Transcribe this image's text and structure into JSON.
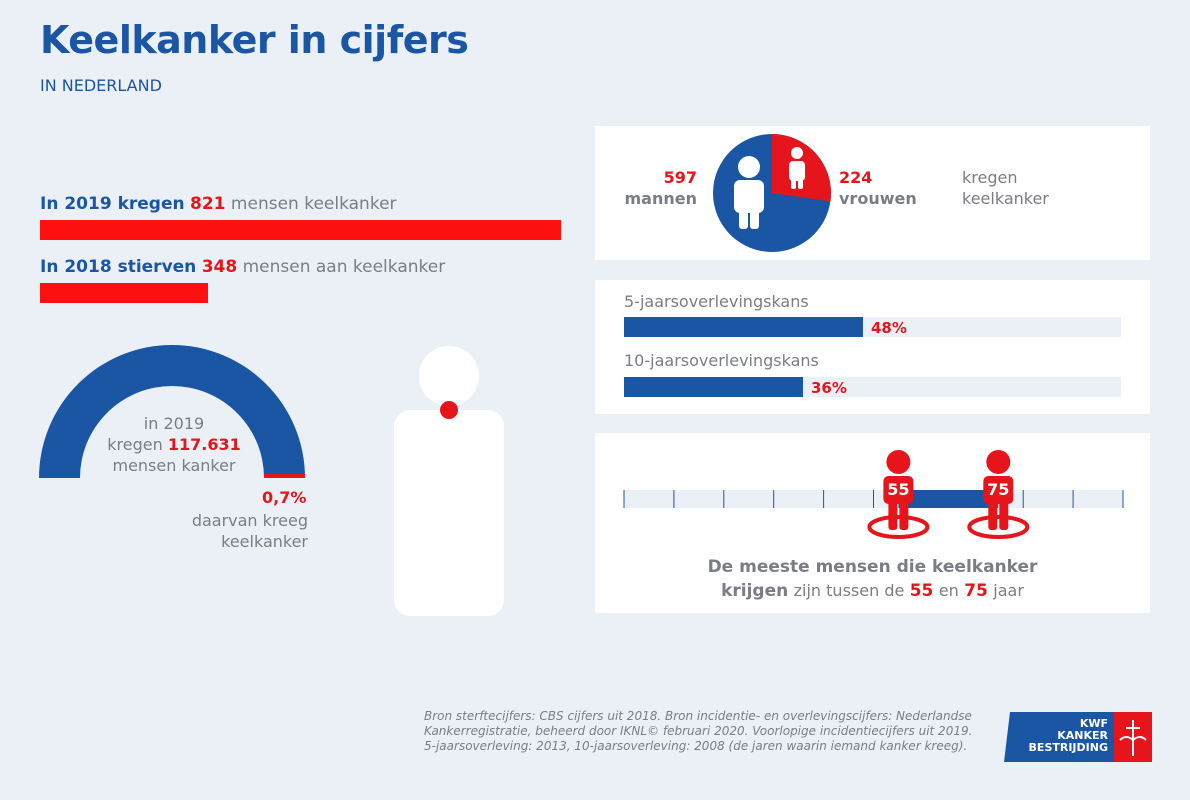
{
  "header": {
    "title": "Keelkanker in cijfers",
    "subtitle": "IN NEDERLAND"
  },
  "incidence": {
    "prefix": "In 2019 kregen",
    "value": "821",
    "suffix": "mensen keelkanker",
    "count": 821
  },
  "mortality": {
    "prefix": "In 2018 stierven",
    "value": "348",
    "suffix": "mensen aan keelkanker",
    "count": 348
  },
  "total_cancer": {
    "line1": "in 2019",
    "line2_prefix": "kregen",
    "line2_value": "117.631",
    "line3": "mensen kanker",
    "share_pct_label": "0,7%",
    "share_pct": 0.7,
    "share_line1": "daarvan kreeg",
    "share_line2": "keelkanker"
  },
  "gender": {
    "men_value": "597",
    "men_label": "mannen",
    "women_value": "224",
    "women_label": "vrouwen",
    "suffix_line1": "kregen",
    "suffix_line2": "keelkanker",
    "men_count": 597,
    "women_count": 224
  },
  "survival": [
    {
      "label": "5-jaarsoverlevingskans",
      "pct_label": "48%",
      "pct": 48
    },
    {
      "label": "10-jaarsoverlevingskans",
      "pct_label": "36%",
      "pct": 36
    }
  ],
  "age": {
    "low_label": "55",
    "high_label": "75",
    "low": 55,
    "high": 75,
    "axis_min": 0,
    "axis_max": 100,
    "caption_line1": "De meeste mensen die keelkanker",
    "caption_line2_a": "krijgen",
    "caption_line2_b": "zijn tussen de",
    "caption_line2_c": "55",
    "caption_line2_d": "en",
    "caption_line2_e": "75",
    "caption_line2_f": "jaar"
  },
  "source": {
    "line1": "Bron sterftecijfers: CBS cijfers uit 2018. Bron incidentie- en overlevingscijfers: Nederlandse",
    "line2": "Kankerregistratie, beheerd door IKNL© februari 2020. Voorlopige incidentiecijfers uit 2019.",
    "line3": "5-jaarsoverleving: 2013, 10-jaarsoverleving: 2008 (de jaren waarin iemand kanker kreeg)."
  },
  "logo": {
    "line1": "KWF",
    "line2": "KANKER",
    "line3": "BESTRIJDING"
  },
  "colors": {
    "blue": "#1a56a4",
    "red": "#e6141b",
    "bar_red": "#ff1010",
    "grey": "#7a7d85",
    "background": "#ebf0f7"
  }
}
